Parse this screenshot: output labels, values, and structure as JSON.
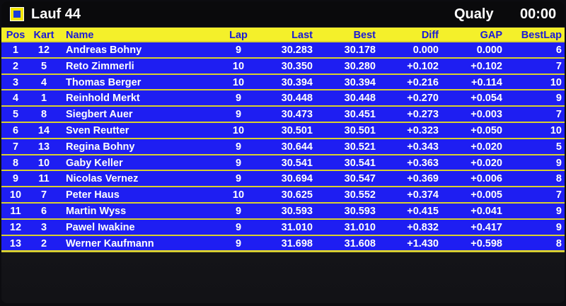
{
  "header": {
    "title": "Lauf 44",
    "mode": "Qualy",
    "time": "00:00"
  },
  "table": {
    "columns": [
      "Pos",
      "Kart",
      "Name",
      "Lap",
      "Last",
      "Best",
      "Diff",
      "GAP",
      "BestLap"
    ],
    "rows": [
      [
        "1",
        "12",
        "Andreas Bohny",
        "9",
        "30.283",
        "30.178",
        "0.000",
        "0.000",
        "6"
      ],
      [
        "2",
        "5",
        "Reto Zimmerli",
        "10",
        "30.350",
        "30.280",
        "+0.102",
        "+0.102",
        "7"
      ],
      [
        "3",
        "4",
        "Thomas Berger",
        "10",
        "30.394",
        "30.394",
        "+0.216",
        "+0.114",
        "10"
      ],
      [
        "4",
        "1",
        "Reinhold Merkt",
        "9",
        "30.448",
        "30.448",
        "+0.270",
        "+0.054",
        "9"
      ],
      [
        "5",
        "8",
        "Siegbert Auer",
        "9",
        "30.473",
        "30.451",
        "+0.273",
        "+0.003",
        "7"
      ],
      [
        "6",
        "14",
        "Sven Reutter",
        "10",
        "30.501",
        "30.501",
        "+0.323",
        "+0.050",
        "10"
      ],
      [
        "7",
        "13",
        "Regina Bohny",
        "9",
        "30.644",
        "30.521",
        "+0.343",
        "+0.020",
        "5"
      ],
      [
        "8",
        "10",
        "Gaby Keller",
        "9",
        "30.541",
        "30.541",
        "+0.363",
        "+0.020",
        "9"
      ],
      [
        "9",
        "11",
        "Nicolas Vernez",
        "9",
        "30.694",
        "30.547",
        "+0.369",
        "+0.006",
        "8"
      ],
      [
        "10",
        "7",
        "Peter Haus",
        "10",
        "30.625",
        "30.552",
        "+0.374",
        "+0.005",
        "7"
      ],
      [
        "11",
        "6",
        "Martin Wyss",
        "9",
        "30.593",
        "30.593",
        "+0.415",
        "+0.041",
        "9"
      ],
      [
        "12",
        "3",
        "Pawel Iwakine",
        "9",
        "31.010",
        "31.010",
        "+0.832",
        "+0.417",
        "9"
      ],
      [
        "13",
        "2",
        "Werner Kaufmann",
        "9",
        "31.698",
        "31.608",
        "+1.430",
        "+0.598",
        "8"
      ]
    ]
  }
}
